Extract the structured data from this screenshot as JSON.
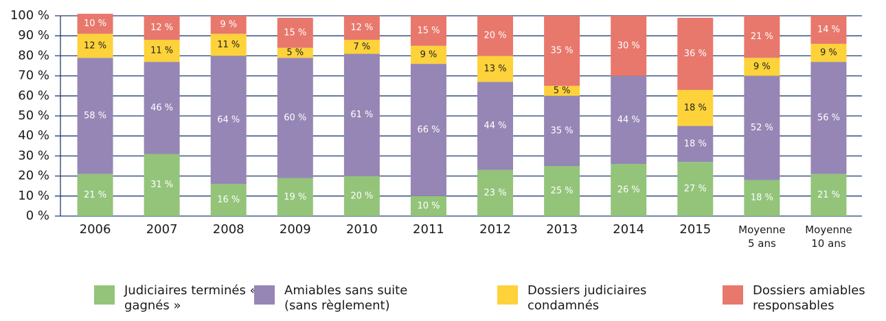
{
  "chart_data": {
    "type": "stacked_bar",
    "categories": [
      "2006",
      "2007",
      "2008",
      "2009",
      "2010",
      "2011",
      "2012",
      "2013",
      "2014",
      "2015",
      "Moyenne 5 ans",
      "Moyenne 10 ans"
    ],
    "series": [
      {
        "name": "Judiciaires terminés « gagnés »",
        "color": "#93c47a",
        "values": [
          21,
          31,
          16,
          19,
          20,
          10,
          23,
          25,
          26,
          27,
          18,
          21
        ],
        "value_labels": [
          "21 %",
          "31 %",
          "16 %",
          "19 %",
          "20 %",
          "10 %",
          "23 %",
          "25 %",
          "26 %",
          "27 %",
          "18 %",
          "21 %"
        ]
      },
      {
        "name": "Amiables sans suite (sans règlement)",
        "color": "#9586b5",
        "values": [
          58,
          46,
          64,
          60,
          61,
          66,
          44,
          35,
          44,
          18,
          52,
          56
        ],
        "value_labels": [
          "58 %",
          "46 %",
          "64 %",
          "60 %",
          "61 %",
          "66 %",
          "44 %",
          "35 %",
          "44 %",
          "18 %",
          "52 %",
          "56 %"
        ]
      },
      {
        "name": "Dossiers judiciaires condamnés",
        "color": "#fdd23a",
        "values": [
          12,
          11,
          11,
          5,
          7,
          9,
          13,
          5,
          null,
          18,
          9,
          9
        ],
        "value_labels": [
          "12 %",
          "11 %",
          "11 %",
          "5 %",
          "7 %",
          "9 %",
          "13 %",
          "5 %",
          null,
          "18 %",
          "9 %",
          "9 %"
        ]
      },
      {
        "name": "Dossiers amiables responsables",
        "color": "#e8786c",
        "values": [
          10,
          12,
          9,
          15,
          12,
          15,
          20,
          35,
          30,
          36,
          21,
          14
        ],
        "value_labels": [
          "10 %",
          "12 %",
          "9 %",
          "15 %",
          "12 %",
          "15 %",
          "20 %",
          "35 %",
          "30 %",
          "36 %",
          "21 %",
          "14 %"
        ]
      }
    ],
    "ylim": [
      0,
      100
    ],
    "yticks": [
      {
        "value": 0,
        "label": "0 %"
      },
      {
        "value": 10,
        "label": "10 %"
      },
      {
        "value": 20,
        "label": "20 %"
      },
      {
        "value": 30,
        "label": "30 %"
      },
      {
        "value": 40,
        "label": "40 %"
      },
      {
        "value": 50,
        "label": "50 %"
      },
      {
        "value": 60,
        "label": "60 %"
      },
      {
        "value": 70,
        "label": "70 %"
      },
      {
        "value": 80,
        "label": "80 %"
      },
      {
        "value": 90,
        "label": "90 %"
      },
      {
        "value": 100,
        "label": "100 %"
      }
    ],
    "grid": true,
    "legend": "bottom"
  }
}
